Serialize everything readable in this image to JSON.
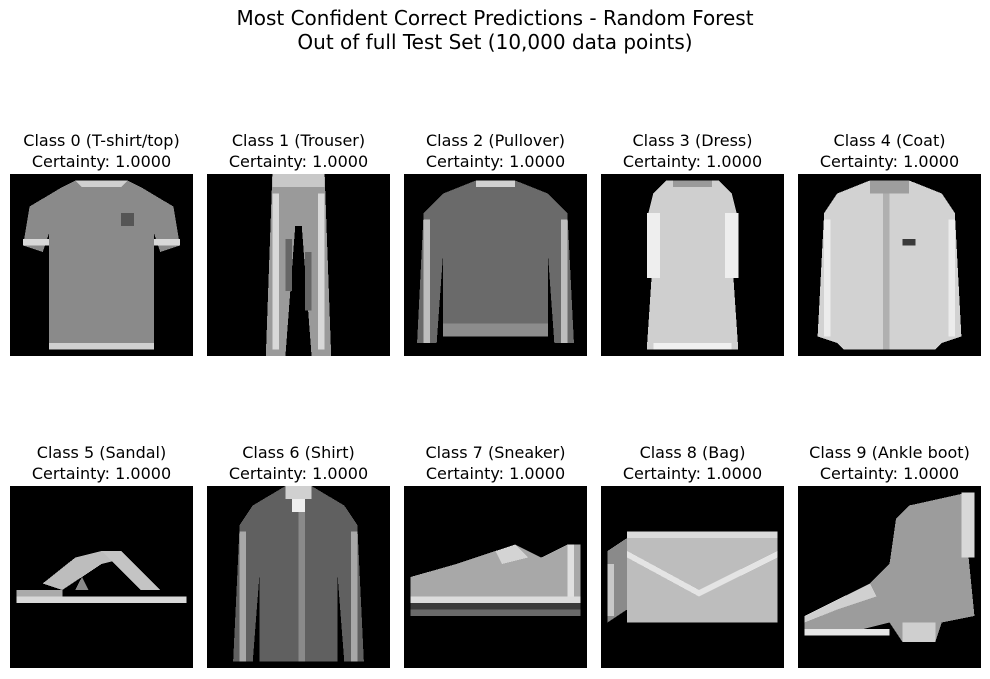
{
  "title": {
    "line1": "Most Confident Correct Predictions - Random Forest",
    "line2": "Out of full Test Set (10,000 data points)"
  },
  "panels": [
    {
      "label": "Class 0 (T-shirt/top)",
      "certainty_text": "Certainty: 1.0000",
      "icon": "tshirt-image"
    },
    {
      "label": "Class 1 (Trouser)",
      "certainty_text": "Certainty: 1.0000",
      "icon": "trouser-image"
    },
    {
      "label": "Class 2 (Pullover)",
      "certainty_text": "Certainty: 1.0000",
      "icon": "pullover-image"
    },
    {
      "label": "Class 3 (Dress)",
      "certainty_text": "Certainty: 1.0000",
      "icon": "dress-image"
    },
    {
      "label": "Class 4 (Coat)",
      "certainty_text": "Certainty: 1.0000",
      "icon": "coat-image"
    },
    {
      "label": "Class 5 (Sandal)",
      "certainty_text": "Certainty: 1.0000",
      "icon": "sandal-image"
    },
    {
      "label": "Class 6 (Shirt)",
      "certainty_text": "Certainty: 1.0000",
      "icon": "shirt-image"
    },
    {
      "label": "Class 7 (Sneaker)",
      "certainty_text": "Certainty: 1.0000",
      "icon": "sneaker-image"
    },
    {
      "label": "Class 8 (Bag)",
      "certainty_text": "Certainty: 1.0000",
      "icon": "bag-image"
    },
    {
      "label": "Class 9 (Ankle boot)",
      "certainty_text": "Certainty: 1.0000",
      "icon": "ankle-boot-image"
    }
  ]
}
